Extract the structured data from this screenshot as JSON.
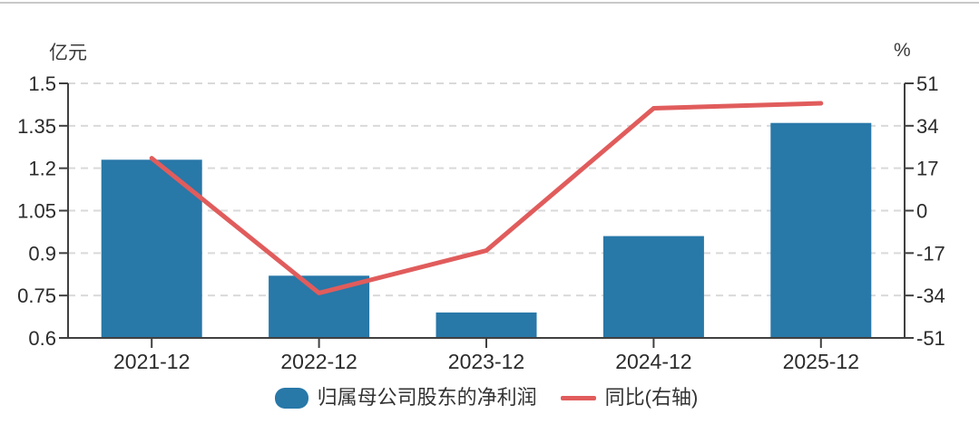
{
  "chart_data": {
    "type": "bar+line",
    "categories": [
      "2021-12",
      "2022-12",
      "2023-12",
      "2024-12",
      "2025-12"
    ],
    "series": [
      {
        "name": "归属母公司股东的净利润",
        "type": "bar",
        "axis": "left",
        "color": "#2878a8",
        "values": [
          1.23,
          0.82,
          0.69,
          0.96,
          1.36
        ]
      },
      {
        "name": "同比(右轴)",
        "type": "line",
        "axis": "right",
        "color": "#e15c5c",
        "values": [
          21,
          -33,
          -16,
          41,
          43
        ]
      }
    ],
    "left_axis": {
      "unit": "亿元",
      "min": 0.6,
      "max": 1.5,
      "ticks": [
        "1.5",
        "1.35",
        "1.2",
        "1.05",
        "0.9",
        "0.75",
        "0.6"
      ]
    },
    "right_axis": {
      "unit": "%",
      "min": -51,
      "max": 51,
      "ticks": [
        "51",
        "34",
        "17",
        "0",
        "-17",
        "-34",
        "-51"
      ]
    },
    "grid": "horizontal-dashed",
    "legend_position": "bottom-center"
  },
  "colors": {
    "axis": "#404040",
    "grid": "#d9d9d9",
    "tick_text": "#2b2b2b",
    "top_border": "#c9c9c9",
    "background": "#ffffff"
  }
}
